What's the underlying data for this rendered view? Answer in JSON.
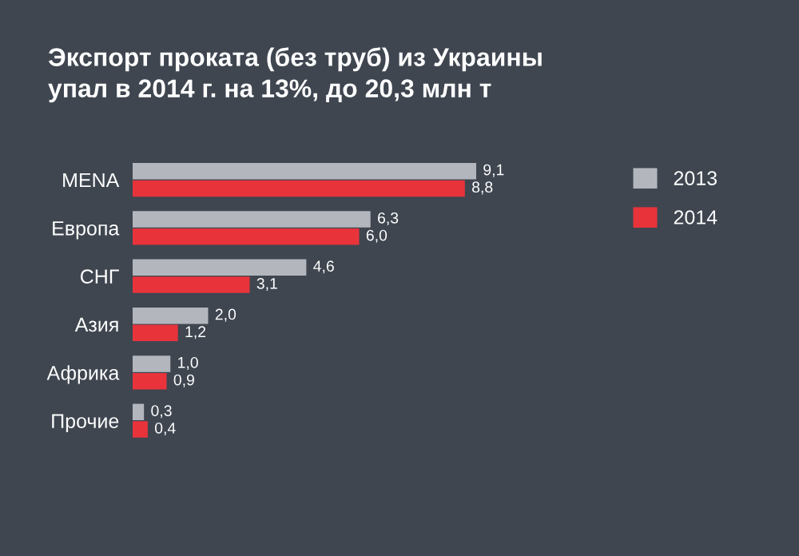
{
  "chart_data": {
    "type": "bar",
    "orientation": "horizontal",
    "title": "Экспорт проката (без труб) из Украины\nупал в 2014 г. на 13%, до 20,3 млн т",
    "categories": [
      "MENA",
      "Европа",
      "СНГ",
      "Азия",
      "Африка",
      "Прочие"
    ],
    "series": [
      {
        "name": "2013",
        "color": "#b3b7bd",
        "values": [
          9.1,
          6.3,
          4.6,
          2.0,
          1.0,
          0.3
        ],
        "value_labels": [
          "9,1",
          "6,3",
          "4,6",
          "2,0",
          "1,0",
          "0,3"
        ]
      },
      {
        "name": "2014",
        "color": "#e8333b",
        "values": [
          8.8,
          6.0,
          3.1,
          1.2,
          0.9,
          0.4
        ],
        "value_labels": [
          "8,8",
          "6,0",
          "3,1",
          "1,2",
          "0,9",
          "0,4"
        ]
      }
    ],
    "legend": "top right",
    "grid": false
  }
}
